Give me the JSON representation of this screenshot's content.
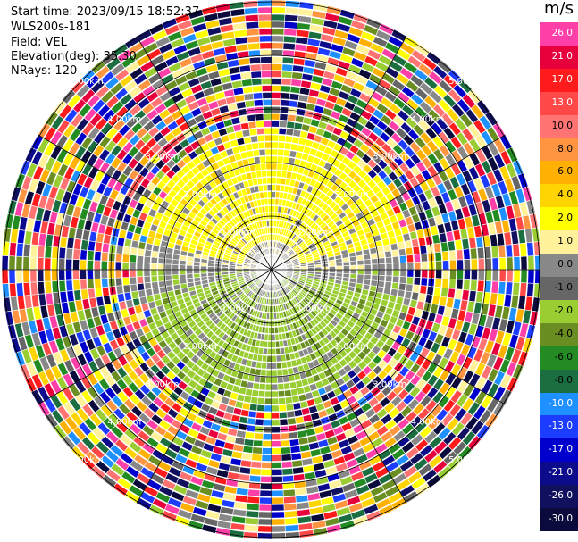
{
  "info": {
    "start_time": "Start time: 2023/09/15 18:52:37",
    "station": "WLS200s-181",
    "field": "Field: VEL",
    "elevation": "Elevation(deg): 35.30",
    "nrays": "NRays: 120"
  },
  "rings": [
    {
      "label": "1.00km",
      "value_km": 1
    },
    {
      "label": "2.00km",
      "value_km": 2
    },
    {
      "label": "3.00km",
      "value_km": 3
    },
    {
      "label": "4.00km",
      "value_km": 4
    },
    {
      "label": "5.00km",
      "value_km": 5
    }
  ],
  "colorbar": {
    "unit": "m/s",
    "entries": [
      {
        "label": "26.0",
        "color": "#ff3fa8"
      },
      {
        "label": "21.0",
        "color": "#e8003c"
      },
      {
        "label": "17.0",
        "color": "#ff1b1b"
      },
      {
        "label": "13.0",
        "color": "#ff4848"
      },
      {
        "label": "10.0",
        "color": "#ff7373"
      },
      {
        "label": "8.0",
        "color": "#ff9540"
      },
      {
        "label": "6.0",
        "color": "#ffb000"
      },
      {
        "label": "4.0",
        "color": "#ffd400"
      },
      {
        "label": "2.0",
        "color": "#ffff00"
      },
      {
        "label": "1.0",
        "color": "#fff29a"
      },
      {
        "label": "0.0",
        "color": "#888888"
      },
      {
        "label": "-1.0",
        "color": "#666666"
      },
      {
        "label": "-2.0",
        "color": "#9acd32"
      },
      {
        "label": "-4.0",
        "color": "#6b8e23"
      },
      {
        "label": "-6.0",
        "color": "#228b22"
      },
      {
        "label": "-8.0",
        "color": "#1a6e40"
      },
      {
        "label": "-10.0",
        "color": "#1e90ff"
      },
      {
        "label": "-13.0",
        "color": "#1c3cff"
      },
      {
        "label": "-17.0",
        "color": "#0000cd"
      },
      {
        "label": "-21.0",
        "color": "#0b0b8c"
      },
      {
        "label": "-26.0",
        "color": "#10105e"
      },
      {
        "label": "-30.0",
        "color": "#0a0a3c"
      }
    ]
  }
}
